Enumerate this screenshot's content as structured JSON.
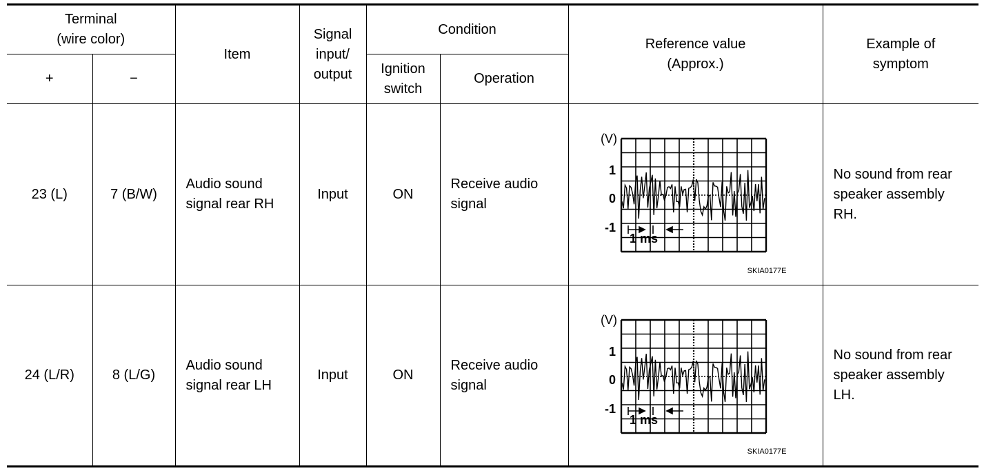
{
  "headers": {
    "terminal": "Terminal\n(wire color)",
    "plus": "+",
    "minus": "−",
    "item": "Item",
    "signal": "Signal\ninput/\noutput",
    "condition": "Condition",
    "ignition": "Ignition\nswitch",
    "operation": "Operation",
    "reference": "Reference value\n(Approx.)",
    "symptom": "Example of\nsymptom"
  },
  "rows": [
    {
      "plus": "23 (L)",
      "minus": "7 (B/W)",
      "item": "Audio sound\nsignal rear RH",
      "signal": "Input",
      "ignition": "ON",
      "operation": "Receive audio\nsignal",
      "waveform": {
        "unit": "(V)",
        "y_ticks": [
          "1",
          "0",
          "-1"
        ],
        "time_label": "1 ms",
        "code": "SKIA0177E"
      },
      "symptom": "No sound from rear\nspeaker assembly\nRH."
    },
    {
      "plus": "24 (L/R)",
      "minus": "8 (L/G)",
      "item": "Audio sound\nsignal rear LH",
      "signal": "Input",
      "ignition": "ON",
      "operation": "Receive audio\nsignal",
      "waveform": {
        "unit": "(V)",
        "y_ticks": [
          "1",
          "0",
          "-1"
        ],
        "time_label": "1 ms",
        "code": "SKIA0177E"
      },
      "symptom": "No sound from rear\nspeaker assembly\nLH."
    }
  ]
}
